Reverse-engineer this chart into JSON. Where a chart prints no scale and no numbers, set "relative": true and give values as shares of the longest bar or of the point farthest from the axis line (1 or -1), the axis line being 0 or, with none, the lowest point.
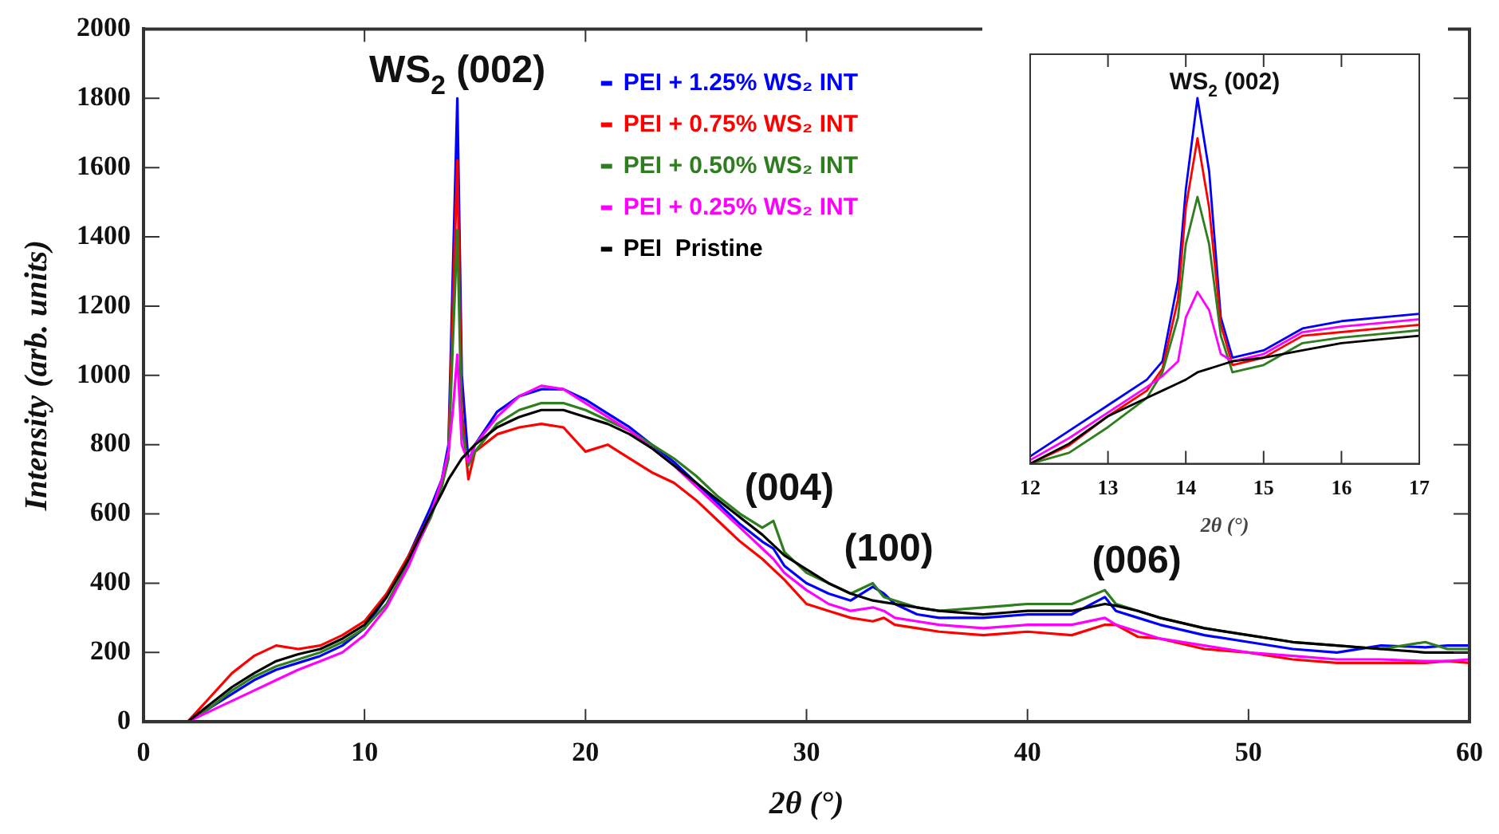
{
  "chart_data": [
    {
      "type": "line",
      "xlabel": "2θ (°)",
      "ylabel": "Intensity (arb. units)",
      "x": [
        2,
        3,
        4,
        5,
        6,
        7,
        8,
        9,
        10,
        11,
        12,
        13,
        13.5,
        13.8,
        14,
        14.2,
        14.4,
        14.7,
        15,
        16,
        17,
        18,
        19,
        20,
        21,
        22,
        23,
        24,
        25,
        26,
        27,
        28,
        28.5,
        29,
        30,
        31,
        32,
        33,
        33.5,
        34,
        35,
        36,
        38,
        40,
        42,
        43.5,
        44,
        45,
        46,
        48,
        50,
        52,
        54,
        56,
        58,
        59,
        60
      ],
      "xlim": [
        0,
        60
      ],
      "xticks": [
        0,
        10,
        20,
        30,
        40,
        50,
        60
      ],
      "ylim": [
        0,
        2000
      ],
      "yticks": [
        0,
        200,
        400,
        600,
        800,
        1000,
        1200,
        1400,
        1600,
        1800,
        2000
      ],
      "grid": false,
      "legend": "top",
      "marker": "none",
      "line_style": "solid",
      "series": [
        {
          "name": "PEI + 1.25% WS₂ INT",
          "color": "#0000ff",
          "values": [
            0,
            40,
            80,
            120,
            150,
            170,
            190,
            220,
            270,
            360,
            480,
            620,
            700,
            800,
            1300,
            1800,
            1000,
            750,
            800,
            895,
            940,
            960,
            960,
            930,
            890,
            850,
            800,
            750,
            690,
            630,
            570,
            520,
            500,
            450,
            400,
            370,
            350,
            390,
            370,
            340,
            310,
            300,
            300,
            310,
            310,
            360,
            320,
            300,
            280,
            250,
            230,
            210,
            200,
            220,
            215,
            220,
            220
          ]
        },
        {
          "name": "PEI + 0.75% WS₂ INT",
          "color": "#ff0000",
          "values": [
            0,
            70,
            140,
            190,
            220,
            210,
            220,
            250,
            290,
            370,
            480,
            600,
            680,
            780,
            1200,
            1620,
            900,
            700,
            780,
            830,
            850,
            860,
            850,
            780,
            800,
            760,
            720,
            690,
            640,
            580,
            520,
            470,
            440,
            410,
            340,
            320,
            300,
            290,
            300,
            280,
            270,
            260,
            250,
            260,
            250,
            280,
            280,
            245,
            240,
            210,
            200,
            180,
            170,
            170,
            170,
            175,
            170
          ]
        },
        {
          "name": "PEI + 0.50% WS₂ INT",
          "color": "#2e7d1e",
          "values": [
            0,
            40,
            90,
            130,
            160,
            180,
            200,
            230,
            270,
            340,
            460,
            590,
            680,
            760,
            1100,
            1420,
            850,
            740,
            780,
            860,
            900,
            920,
            920,
            900,
            870,
            840,
            800,
            760,
            710,
            650,
            600,
            560,
            580,
            490,
            430,
            400,
            370,
            400,
            360,
            350,
            330,
            320,
            330,
            340,
            340,
            380,
            340,
            320,
            300,
            270,
            250,
            230,
            220,
            210,
            230,
            210,
            210
          ]
        },
        {
          "name": "PEI + 0.25% WS₂ INT",
          "color": "#ff00ff",
          "values": [
            0,
            30,
            60,
            90,
            120,
            150,
            175,
            200,
            250,
            330,
            450,
            600,
            700,
            780,
            900,
            1060,
            800,
            750,
            800,
            880,
            940,
            970,
            960,
            920,
            880,
            840,
            790,
            740,
            680,
            620,
            560,
            500,
            470,
            430,
            380,
            340,
            320,
            330,
            320,
            300,
            290,
            280,
            270,
            280,
            280,
            300,
            280,
            260,
            240,
            220,
            200,
            190,
            180,
            180,
            175,
            175,
            180
          ]
        },
        {
          "name": "PEI  Pristine",
          "color": "#000000",
          "values": [
            0,
            50,
            100,
            140,
            175,
            195,
            210,
            240,
            280,
            360,
            470,
            600,
            660,
            700,
            720,
            740,
            760,
            780,
            800,
            850,
            880,
            900,
            900,
            880,
            860,
            830,
            790,
            740,
            690,
            640,
            590,
            540,
            510,
            480,
            440,
            400,
            370,
            350,
            345,
            340,
            330,
            320,
            310,
            320,
            320,
            340,
            335,
            320,
            300,
            270,
            250,
            230,
            220,
            210,
            200,
            200,
            200
          ]
        }
      ],
      "annotations": [
        {
          "text": "WS$_{2}$ (002)",
          "x": 14.2,
          "y": 1800
        },
        "(004)",
        "(100)",
        "(006)"
      ]
    },
    {
      "type": "line",
      "xlabel": "2θ (°)",
      "relative": true,
      "tick_labels": "x",
      "x": [
        12,
        12.5,
        13,
        13.5,
        13.7,
        13.9,
        14,
        14.15,
        14.3,
        14.45,
        14.6,
        15,
        15.5,
        16,
        16.5,
        17
      ],
      "xlim": [
        12,
        17
      ],
      "xticks": [
        12,
        13,
        14,
        15,
        16,
        17
      ],
      "grid": false,
      "legend": false,
      "marker": "none",
      "line_style": "solid",
      "series": [
        {
          "color": "#0000ff",
          "values": [
            0.02,
            0.09,
            0.16,
            0.23,
            0.28,
            0.5,
            0.75,
            1,
            0.8,
            0.4,
            0.29,
            0.31,
            0.37,
            0.39,
            0.4,
            0.41
          ]
        },
        {
          "color": "#ff0000",
          "values": [
            0,
            0.05,
            0.13,
            0.2,
            0.26,
            0.45,
            0.7,
            0.89,
            0.7,
            0.38,
            0.27,
            0.29,
            0.35,
            0.36,
            0.37,
            0.38
          ]
        },
        {
          "color": "#2e7d1e",
          "values": [
            0,
            0.03,
            0.1,
            0.18,
            0.25,
            0.4,
            0.6,
            0.73,
            0.6,
            0.35,
            0.25,
            0.27,
            0.33,
            0.345,
            0.355,
            0.365
          ]
        },
        {
          "color": "#ff00ff",
          "values": [
            0.01,
            0.07,
            0.14,
            0.21,
            0.24,
            0.28,
            0.4,
            0.47,
            0.42,
            0.3,
            0.28,
            0.3,
            0.36,
            0.375,
            0.385,
            0.395
          ]
        },
        {
          "color": "#000000",
          "values": [
            0,
            0.055,
            0.13,
            0.18,
            0.2,
            0.22,
            0.23,
            0.25,
            0.26,
            0.27,
            0.28,
            0.29,
            0.31,
            0.33,
            0.34,
            0.35
          ]
        }
      ],
      "annotations": [
        "WS$_{2}$ (002)"
      ]
    }
  ]
}
